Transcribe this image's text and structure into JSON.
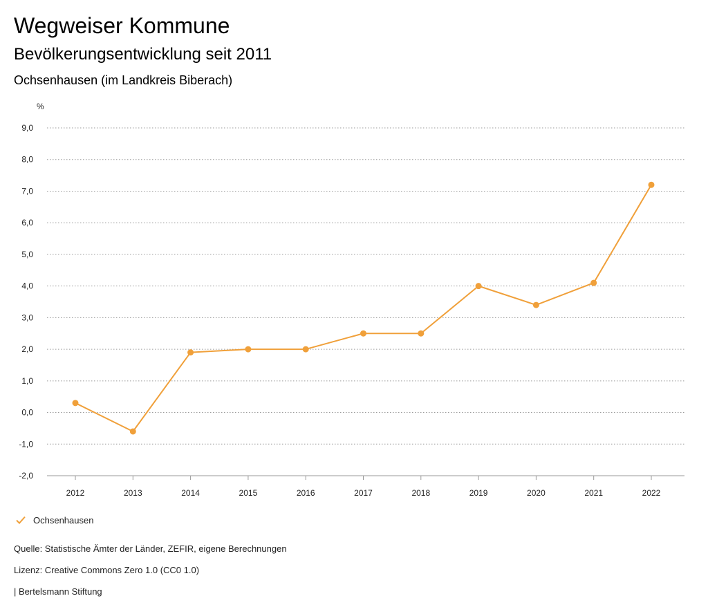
{
  "header": {
    "title": "Wegweiser Kommune",
    "subtitle": "Bevölkerungsentwicklung seit 2011",
    "region": "Ochsenhausen (im Landkreis Biberach)"
  },
  "chart_data": {
    "type": "line",
    "title": "Bevölkerungsentwicklung seit 2011",
    "ylabel": "%",
    "xlabel": "",
    "ylim": [
      -2.0,
      9.0
    ],
    "yticks": [
      -2.0,
      -1.0,
      0.0,
      1.0,
      2.0,
      3.0,
      4.0,
      5.0,
      6.0,
      7.0,
      8.0,
      9.0
    ],
    "ytick_labels": [
      "-2,0",
      "-1,0",
      "0,0",
      "1,0",
      "2,0",
      "3,0",
      "4,0",
      "5,0",
      "6,0",
      "7,0",
      "8,0",
      "9,0"
    ],
    "categories": [
      "2012",
      "2013",
      "2014",
      "2015",
      "2016",
      "2017",
      "2018",
      "2019",
      "2020",
      "2021",
      "2022"
    ],
    "grid": true,
    "legend_position": "bottom-left",
    "series": [
      {
        "name": "Ochsenhausen",
        "color": "#f0a03a",
        "values": [
          0.3,
          -0.6,
          1.9,
          2.0,
          2.0,
          2.5,
          2.5,
          4.0,
          3.4,
          4.1,
          7.2
        ]
      }
    ]
  },
  "legend": {
    "label": "Ochsenhausen",
    "icon": "check-icon"
  },
  "footer": {
    "source": "Quelle: Statistische Ämter der Länder, ZEFIR, eigene Berechnungen",
    "license": "Lizenz: Creative Commons Zero 1.0 (CC0 1.0)",
    "publisher": "| Bertelsmann Stiftung"
  }
}
